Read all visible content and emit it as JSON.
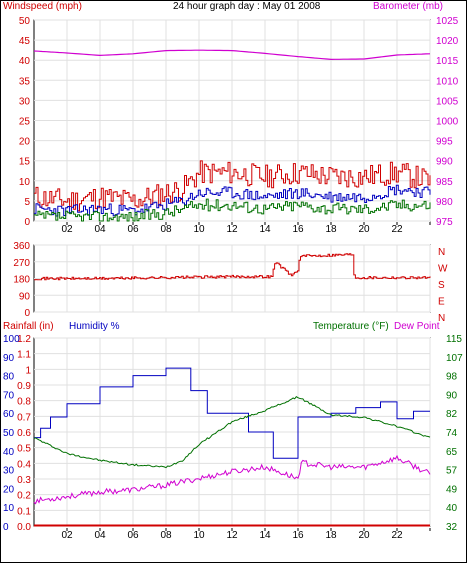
{
  "header": {
    "left_label": "Windspeed (mph)",
    "title": "24 hour graph day : May 01 2008",
    "right_label": "Barometer (mb)"
  },
  "bottom_header": {
    "rain_label": "Rainfall (in)",
    "humidity_label": "Humidity %",
    "temp_label": "Temperature (°F)",
    "dew_label": "Dew Point"
  },
  "colors": {
    "red": "#d00000",
    "blue": "#0000c0",
    "green": "#007000",
    "magenta": "#d000d0",
    "grid": "#e0e0e0"
  },
  "chart_data": [
    {
      "type": "line",
      "panel": "wind-barometer",
      "x_ticks": [
        "02",
        "04",
        "06",
        "08",
        "10",
        "12",
        "14",
        "16",
        "18",
        "20",
        "22",
        ""
      ],
      "left_axis": {
        "label": "Windspeed (mph)",
        "ticks": [
          0,
          5,
          10,
          15,
          20,
          25,
          30,
          35,
          40,
          45,
          50
        ],
        "ylim": [
          0,
          50
        ]
      },
      "right_axis": {
        "label": "Barometer (mb)",
        "ticks": [
          975,
          980,
          985,
          990,
          995,
          1000,
          1005,
          1010,
          1015,
          1020,
          1025
        ],
        "ylim": [
          975,
          1025
        ]
      },
      "series": [
        {
          "axis": "right",
          "color": "#d000d0",
          "hours": [
            0,
            2,
            4,
            6,
            8,
            10,
            12,
            14,
            16,
            18,
            20,
            22,
            24
          ],
          "values": [
            1017.3,
            1016.8,
            1016.2,
            1016.6,
            1017.4,
            1017.5,
            1017.4,
            1016.7,
            1015.9,
            1015.2,
            1015.3,
            1016.3,
            1016.6
          ]
        },
        {
          "axis": "left",
          "color": "#d00000",
          "hours": [
            0,
            2,
            4,
            6,
            8,
            9,
            10,
            12,
            14,
            16,
            18,
            20,
            22,
            24
          ],
          "values": [
            6,
            5,
            6,
            5,
            7,
            8,
            12,
            12,
            11,
            12,
            11,
            11,
            12,
            10
          ]
        },
        {
          "axis": "left",
          "color": "#0000c0",
          "hours": [
            0,
            2,
            4,
            6,
            8,
            9,
            10,
            12,
            14,
            16,
            18,
            20,
            22,
            24
          ],
          "values": [
            3,
            2.5,
            3,
            2.5,
            4,
            5,
            7,
            7,
            6,
            7,
            6,
            6,
            8,
            7
          ]
        },
        {
          "axis": "left",
          "color": "#007000",
          "hours": [
            0,
            2,
            4,
            6,
            8,
            9,
            10,
            12,
            14,
            16,
            18,
            20,
            22,
            24
          ],
          "values": [
            1,
            1,
            1,
            1,
            2,
            3,
            4,
            4,
            3,
            4,
            3,
            3,
            4,
            4
          ]
        }
      ]
    },
    {
      "type": "line",
      "panel": "wind-direction",
      "left_ticks": [
        "360",
        "270",
        "180",
        "90",
        "0"
      ],
      "right_ticks": [
        "N",
        "W",
        "S",
        "E",
        "N"
      ],
      "ylim": [
        0,
        360
      ],
      "series": [
        {
          "color": "#d00000",
          "hours": [
            0,
            4,
            8,
            12,
            14.4,
            14.6,
            15.6,
            16,
            16.1,
            19.3,
            19.4,
            24
          ],
          "values": [
            180,
            180,
            185,
            190,
            190,
            270,
            195,
            230,
            300,
            310,
            185,
            185
          ]
        }
      ]
    },
    {
      "type": "line",
      "panel": "rain-humidity-temperature",
      "axis_rain": {
        "ticks": [
          "0.0",
          "0.1",
          "0.2",
          "0.3",
          "0.4",
          "0.5",
          "0.6",
          "0.7",
          "0.8",
          "0.9",
          "1",
          "1.1",
          "1.2"
        ],
        "ylim": [
          0,
          1.2
        ]
      },
      "axis_humidity": {
        "ticks": [
          "0",
          "10",
          "20",
          "30",
          "40",
          "50",
          "60",
          "70",
          "80",
          "90",
          "100"
        ],
        "ylim": [
          0,
          100
        ]
      },
      "axis_temperature": {
        "ticks": [
          "32",
          "40",
          "49",
          "57",
          "65",
          "74",
          "82",
          "90",
          "98",
          "107",
          "115"
        ],
        "ylim": [
          32,
          115
        ]
      },
      "series": [
        {
          "name": "Humidity %",
          "axis": "humidity",
          "color": "#0000c0",
          "hours": [
            0,
            0.4,
            0.4,
            1,
            1,
            2,
            2,
            4,
            4,
            6,
            6,
            8,
            8,
            9.5,
            9.5,
            10.5,
            10.5,
            13,
            13,
            14.5,
            14.5,
            16,
            16,
            18,
            18,
            19.5,
            19.5,
            21,
            21,
            22,
            22,
            23,
            23,
            24
          ],
          "values": [
            47,
            47,
            52,
            52,
            58,
            58,
            65,
            65,
            74,
            74,
            80,
            80,
            84,
            84,
            72,
            72,
            60,
            60,
            50,
            50,
            36,
            36,
            58,
            58,
            60,
            60,
            63,
            63,
            66,
            66,
            57,
            57,
            61,
            61
          ]
        },
        {
          "name": "Temperature (°F)",
          "axis": "temperature",
          "color": "#007000",
          "hours": [
            0,
            2,
            4,
            6,
            8,
            9,
            10,
            12,
            14,
            16,
            18,
            20,
            22,
            24
          ],
          "values": [
            71,
            64,
            61,
            59,
            58,
            61,
            68,
            78,
            83,
            89,
            81,
            80,
            76,
            71
          ]
        },
        {
          "name": "Dew Point",
          "axis": "temperature",
          "color": "#d000d0",
          "hours": [
            0,
            2,
            4,
            6,
            8,
            10,
            12,
            14,
            16,
            16.2,
            18,
            20,
            22,
            24
          ],
          "values": [
            43,
            45,
            47,
            48,
            50,
            53,
            56,
            58,
            53,
            60,
            58,
            58,
            62,
            55
          ]
        },
        {
          "name": "Rainfall (in)",
          "axis": "rain",
          "color": "#d00000",
          "hours": [
            0,
            24
          ],
          "values": [
            0,
            0
          ]
        }
      ]
    }
  ]
}
